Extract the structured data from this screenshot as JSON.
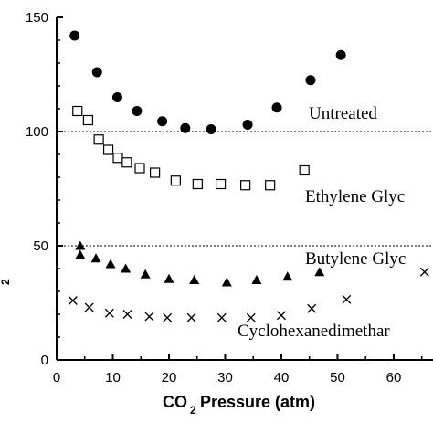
{
  "chart_data": {
    "type": "scatter",
    "xlabel": {
      "main": "CO",
      "sub": "2",
      "rest": " Pressure (atm)"
    },
    "ylabel_fragment": "2",
    "xlim": [
      0,
      67
    ],
    "ylim": [
      0,
      150
    ],
    "x_ticks": [
      0,
      10,
      20,
      30,
      40,
      50,
      60
    ],
    "y_ticks": [
      0,
      50,
      100,
      150
    ],
    "reference_lines": [
      100,
      50
    ],
    "grid": false,
    "series": [
      {
        "name": "Untreated",
        "marker": "filled-circle",
        "points": [
          [
            3.2,
            142
          ],
          [
            7.2,
            126
          ],
          [
            10.8,
            115
          ],
          [
            14.3,
            109
          ],
          [
            18.8,
            104.5
          ],
          [
            22.9,
            101.5
          ],
          [
            27.5,
            101
          ],
          [
            34,
            103
          ],
          [
            39.2,
            110.5
          ],
          [
            45.2,
            122.5
          ],
          [
            50.6,
            133.5
          ]
        ]
      },
      {
        "name": "Ethylene Glyc",
        "marker": "open-square",
        "points": [
          [
            3.7,
            109
          ],
          [
            5.6,
            105
          ],
          [
            7.5,
            96.5
          ],
          [
            9.2,
            92
          ],
          [
            10.9,
            88.5
          ],
          [
            12.5,
            86.5
          ],
          [
            14.8,
            84
          ],
          [
            17.5,
            82
          ],
          [
            21.2,
            78.5
          ],
          [
            25.1,
            77
          ],
          [
            29.2,
            77
          ],
          [
            33.6,
            76.5
          ],
          [
            38,
            76.5
          ],
          [
            44.1,
            83
          ]
        ]
      },
      {
        "name": "Butylene Glyc",
        "marker": "filled-triangle",
        "points": [
          [
            4.2,
            50
          ],
          [
            4.2,
            46
          ],
          [
            7,
            44.5
          ],
          [
            9.6,
            42
          ],
          [
            12.3,
            40
          ],
          [
            15.8,
            37.5
          ],
          [
            20,
            35.5
          ],
          [
            24.5,
            35
          ],
          [
            30.3,
            34
          ],
          [
            35.6,
            35
          ],
          [
            41.1,
            36.5
          ],
          [
            46.8,
            38.5
          ]
        ]
      },
      {
        "name": "Cyclohexanedimethar",
        "marker": "cross",
        "points": [
          [
            2.9,
            26
          ],
          [
            5.8,
            23
          ],
          [
            9.4,
            20.5
          ],
          [
            12.6,
            20
          ],
          [
            16.5,
            19
          ],
          [
            19.7,
            18.5
          ],
          [
            24,
            18.5
          ],
          [
            29.4,
            18.5
          ],
          [
            34.6,
            18.5
          ],
          [
            40,
            19.5
          ],
          [
            45.4,
            22.5
          ],
          [
            51.6,
            26.5
          ],
          [
            65.5,
            38.5
          ]
        ]
      }
    ]
  }
}
